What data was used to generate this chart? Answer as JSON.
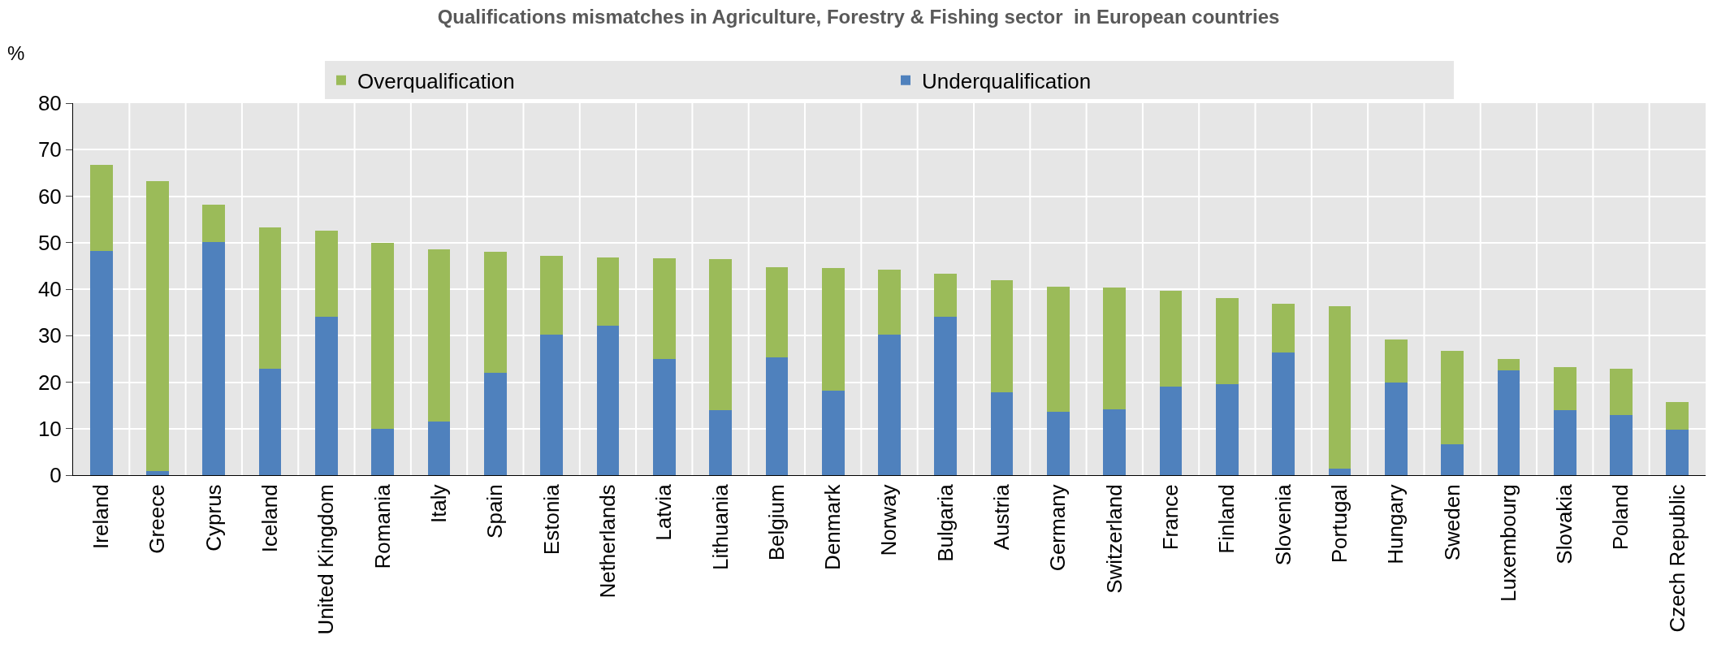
{
  "chart_data": {
    "type": "bar",
    "stacked": true,
    "title": "Qualifications mismatches in Agriculture, Forestry & Fishing sector  in European countries",
    "ylabel": "%",
    "categories": [
      "Ireland",
      "Greece",
      "Cyprus",
      "Iceland",
      "United Kingdom",
      "Romania",
      "Italy",
      "Spain",
      "Estonia",
      "Netherlands",
      "Latvia",
      "Lithuania",
      "Belgium",
      "Denmark",
      "Norway",
      "Bulgaria",
      "Austria",
      "Germany",
      "Switzerland",
      "France",
      "Finland",
      "Slovenia",
      "Portugal",
      "Hungary",
      "Sweden",
      "Luxembourg",
      "Slovakia",
      "Poland",
      "Czech Republic"
    ],
    "series": [
      {
        "name": "Underqualification",
        "color": "#4f81bd",
        "values": [
          48.2,
          0.8,
          50.1,
          22.8,
          34.1,
          10.0,
          11.6,
          22.0,
          30.2,
          32.2,
          24.9,
          14.0,
          25.3,
          18.2,
          30.3,
          34.1,
          17.8,
          13.7,
          14.2,
          19.0,
          19.6,
          26.3,
          1.4,
          20.0,
          6.7,
          22.6,
          13.9,
          13.0,
          9.7
        ]
      },
      {
        "name": "Overqualification",
        "color": "#9bbb59",
        "values": [
          18.6,
          62.4,
          8.1,
          30.4,
          18.5,
          39.9,
          36.9,
          26.0,
          17.0,
          14.7,
          21.8,
          32.4,
          19.5,
          26.3,
          13.9,
          9.3,
          24.1,
          26.9,
          26.1,
          20.7,
          18.4,
          10.6,
          34.9,
          9.1,
          20.1,
          2.4,
          9.3,
          9.9,
          6.1
        ]
      }
    ],
    "ylim": [
      0,
      80
    ],
    "yticks": [
      0,
      10,
      20,
      30,
      40,
      50,
      60,
      70,
      80
    ],
    "grid": true,
    "legend": "top"
  }
}
